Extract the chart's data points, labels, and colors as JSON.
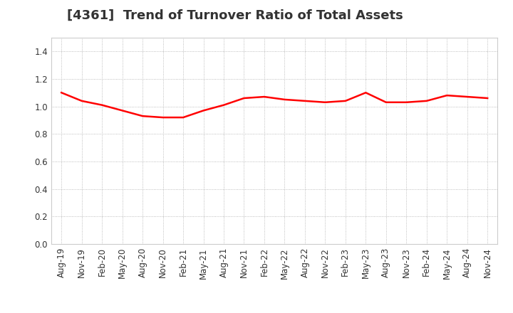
{
  "title": "[4361]  Trend of Turnover Ratio of Total Assets",
  "title_fontsize": 13,
  "title_color": "#333333",
  "line_color": "#FF0000",
  "line_width": 1.8,
  "background_color": "#FFFFFF",
  "plot_bg_color": "#FFFFFF",
  "ylim": [
    0.0,
    1.5
  ],
  "yticks": [
    0.0,
    0.2,
    0.4,
    0.6,
    0.8,
    1.0,
    1.2,
    1.4
  ],
  "x_labels": [
    "Aug-19",
    "Nov-19",
    "Feb-20",
    "May-20",
    "Aug-20",
    "Nov-20",
    "Feb-21",
    "May-21",
    "Aug-21",
    "Nov-21",
    "Feb-22",
    "May-22",
    "Aug-22",
    "Nov-22",
    "Feb-23",
    "May-23",
    "Aug-23",
    "Nov-23",
    "Feb-24",
    "May-24",
    "Aug-24",
    "Nov-24"
  ],
  "values": [
    1.1,
    1.04,
    1.01,
    0.97,
    0.93,
    0.92,
    0.92,
    0.97,
    1.01,
    1.06,
    1.07,
    1.05,
    1.04,
    1.03,
    1.04,
    1.1,
    1.03,
    1.03,
    1.04,
    1.08,
    1.07,
    1.06
  ],
  "grid_color": "#AAAAAA",
  "tick_fontsize": 8.5
}
